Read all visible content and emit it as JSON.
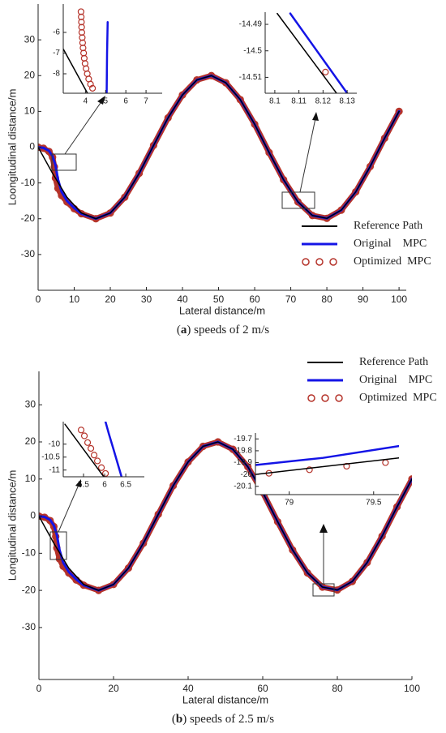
{
  "chart_data": [
    {
      "type": "line",
      "xlabel": "Lateral distance/m",
      "ylabel": "Loongitudinal distance/m",
      "xlim": [
        0,
        102
      ],
      "ylim": [
        -40,
        40
      ],
      "xticks": [
        0,
        10,
        20,
        30,
        40,
        50,
        60,
        70,
        80,
        90,
        100
      ],
      "yticks": [
        -30,
        -20,
        -10,
        0,
        10,
        20,
        30
      ],
      "legend": "lower right",
      "caption": [
        "(",
        "a",
        ") speeds of 2 m/s"
      ],
      "series": [
        {
          "name": "Reference Path",
          "color": "#000000",
          "linewidth": 1.5,
          "linestyle": "-",
          "x": [
            0,
            4,
            8,
            12,
            16,
            20,
            24,
            28,
            32,
            36,
            40,
            44,
            48,
            52,
            56,
            60,
            64,
            68,
            72,
            76,
            80,
            84,
            88,
            92,
            96,
            100
          ],
          "values": [
            0,
            -7.3,
            -14,
            -18.4,
            -20,
            -18.4,
            -14,
            -7.3,
            0.5,
            8.2,
            14.6,
            18.8,
            20,
            18,
            13.3,
            6.4,
            -1.5,
            -9.1,
            -15.3,
            -19.1,
            -19.9,
            -17.6,
            -12.5,
            -5.4,
            2.5,
            10
          ]
        },
        {
          "name": "Original    MPC",
          "color": "#1414e6",
          "linewidth": 3,
          "linestyle": "-",
          "x": [
            0,
            1.5,
            3,
            4,
            4.8,
            5.5,
            6.5,
            8,
            10,
            12,
            16,
            20,
            24,
            28,
            32,
            36,
            40,
            44,
            48,
            52,
            56,
            60,
            64,
            68,
            72,
            76,
            80,
            84,
            88,
            92,
            96,
            100
          ],
          "values": [
            0,
            -0.2,
            -1,
            -2.5,
            -5,
            -9,
            -12.5,
            -15,
            -17,
            -18.6,
            -20,
            -18.4,
            -14,
            -7.3,
            0.5,
            8.2,
            14.6,
            18.8,
            20,
            18,
            13.3,
            6.4,
            -1.5,
            -9.1,
            -15.3,
            -19.1,
            -19.9,
            -17.6,
            -12.5,
            -5.4,
            2.5,
            10
          ]
        },
        {
          "name": "Optimized  MPC",
          "color": "#b5332a",
          "linewidth": 7,
          "linestyle": "-",
          "marker": "o",
          "markersize": 4,
          "x": [
            0,
            1.5,
            3,
            4,
            4.5,
            4.8,
            5.5,
            6.5,
            8,
            10,
            12,
            16,
            20,
            24,
            28,
            32,
            36,
            40,
            44,
            48,
            52,
            56,
            60,
            64,
            68,
            72,
            76,
            80,
            84,
            88,
            92,
            96,
            100
          ],
          "values": [
            0,
            -0.3,
            -1.2,
            -2.8,
            -5.5,
            -8.6,
            -11.5,
            -13.5,
            -15.3,
            -17.2,
            -18.6,
            -20,
            -18.4,
            -14,
            -7.3,
            0.5,
            8.2,
            14.6,
            18.8,
            20,
            18,
            13.3,
            6.4,
            -1.5,
            -9.1,
            -15.3,
            -19.1,
            -19.9,
            -17.6,
            -12.5,
            -5.4,
            2.5,
            10
          ]
        }
      ]
    },
    {
      "type": "line",
      "xlim": [
        2.9,
        7.8
      ],
      "ylim": [
        -8.94,
        -4.63
      ],
      "xticks": [
        4,
        5,
        6,
        7
      ],
      "yticks": [
        -8,
        -7,
        -6
      ],
      "series": [
        {
          "color": "#000000",
          "linewidth": 1.5,
          "linestyle": "-",
          "x": [
            2.9,
            4.1
          ],
          "values": [
            -6.8,
            -8.94
          ]
        },
        {
          "color": "#1414e6",
          "linewidth": 2.5,
          "linestyle": "-",
          "x": [
            5.1,
            5.07,
            5.05
          ],
          "values": [
            -5.5,
            -7,
            -8.94
          ]
        },
        {
          "color": "#b5332a",
          "linestyle": "none",
          "marker": "o",
          "markersize": 3.5,
          "x": [
            3.78,
            3.79,
            3.8,
            3.81,
            3.82,
            3.84,
            3.86,
            3.88,
            3.91,
            3.94,
            3.98,
            4.03,
            4.09,
            4.16,
            4.25,
            4.35
          ],
          "values": [
            -5.0,
            -5.25,
            -5.5,
            -5.75,
            -6.0,
            -6.25,
            -6.5,
            -6.75,
            -7.0,
            -7.25,
            -7.5,
            -7.75,
            -8.0,
            -8.25,
            -8.5,
            -8.7
          ]
        }
      ]
    },
    {
      "type": "line",
      "xlim": [
        8.096,
        8.134
      ],
      "ylim": [
        -14.516,
        -14.4854
      ],
      "xticks": [
        8.1,
        8.11,
        8.12,
        8.13
      ],
      "yticks": [
        -14.51,
        -14.5,
        -14.49
      ],
      "series": [
        {
          "color": "#000000",
          "linewidth": 1.5,
          "linestyle": "-",
          "x": [
            8.101,
            8.1256
          ],
          "values": [
            -14.4859,
            -14.516
          ]
        },
        {
          "color": "#1414e6",
          "linewidth": 2.5,
          "linestyle": "-",
          "x": [
            8.1064,
            8.13
          ],
          "values": [
            -14.4859,
            -14.516
          ]
        },
        {
          "color": "#b5332a",
          "linestyle": "none",
          "marker": "o",
          "markersize": 3.5,
          "x": [
            8.121
          ],
          "values": [
            -14.508
          ]
        }
      ]
    },
    {
      "type": "line",
      "xlabel": "Lateral distance/m",
      "ylabel": "Longitudinal distance/m",
      "xlim": [
        0,
        100
      ],
      "ylim": [
        -44,
        39
      ],
      "xticks": [
        0,
        20,
        40,
        60,
        80,
        100
      ],
      "yticks": [
        -30,
        -20,
        -10,
        0,
        10,
        20,
        30
      ],
      "legend": "upper right",
      "caption": [
        "(",
        "b",
        ") speeds of 2.5 m/s"
      ],
      "series": [
        {
          "name": "Reference Path",
          "color": "#000000",
          "linewidth": 1.5,
          "linestyle": "-",
          "x": [
            0,
            4,
            8,
            12,
            16,
            20,
            24,
            28,
            32,
            36,
            40,
            44,
            48,
            52,
            56,
            60,
            64,
            68,
            72,
            76,
            80,
            84,
            88,
            92,
            96,
            100
          ],
          "values": [
            0,
            -7.3,
            -14,
            -18.4,
            -20,
            -18.4,
            -14,
            -7.3,
            0.5,
            8.2,
            14.6,
            18.8,
            20,
            18,
            13.3,
            6.4,
            -1.5,
            -9.1,
            -15.3,
            -19.1,
            -19.9,
            -17.6,
            -12.5,
            -5.4,
            2.5,
            10
          ]
        },
        {
          "name": "Original    MPC",
          "color": "#1414e6",
          "linewidth": 3,
          "linestyle": "-",
          "x": [
            0,
            1.5,
            3,
            4,
            4.8,
            5.5,
            6.5,
            8,
            10,
            12,
            16,
            20,
            24,
            28,
            32,
            36,
            40,
            44,
            48,
            52,
            56,
            60,
            64,
            68,
            72,
            76,
            80,
            84,
            88,
            92,
            96,
            100
          ],
          "values": [
            0,
            -0.2,
            -1,
            -2.5,
            -5,
            -9,
            -12.5,
            -15,
            -17,
            -18.6,
            -20,
            -18.4,
            -14,
            -7.3,
            0.5,
            8.2,
            14.6,
            18.8,
            20,
            18,
            13.3,
            6.4,
            -1.5,
            -9.1,
            -15.3,
            -19.1,
            -19.9,
            -17.6,
            -12.5,
            -5.4,
            2.5,
            10
          ]
        },
        {
          "name": "Optimized  MPC",
          "color": "#b5332a",
          "linewidth": 7,
          "linestyle": "-",
          "marker": "o",
          "markersize": 4,
          "x": [
            0,
            1.5,
            3,
            4,
            4.5,
            4.8,
            5.5,
            6.5,
            8,
            10,
            12,
            16,
            20,
            24,
            28,
            32,
            36,
            40,
            44,
            48,
            52,
            56,
            60,
            64,
            68,
            72,
            76,
            80,
            84,
            88,
            92,
            96,
            100
          ],
          "values": [
            0,
            -0.3,
            -1.2,
            -2.8,
            -5.5,
            -8.6,
            -11.5,
            -13.5,
            -15.3,
            -17.2,
            -18.6,
            -20,
            -18.4,
            -14,
            -7.3,
            0.5,
            8.2,
            14.6,
            18.8,
            20,
            18,
            13.3,
            6.4,
            -1.5,
            -9.1,
            -15.3,
            -19.1,
            -19.9,
            -17.6,
            -12.5,
            -5.4,
            2.5,
            10
          ]
        }
      ]
    },
    {
      "type": "line",
      "xlim": [
        5.02,
        6.94
      ],
      "ylim": [
        -11.26,
        -9.13
      ],
      "xticks": [
        5.5,
        6,
        6.5
      ],
      "yticks": [
        -11,
        -10.5,
        -10
      ],
      "series": [
        {
          "color": "#000000",
          "linewidth": 1.5,
          "linestyle": "-",
          "x": [
            5.06,
            5.98
          ],
          "values": [
            -9.23,
            -11.26
          ]
        },
        {
          "color": "#1414e6",
          "linewidth": 2.5,
          "linestyle": "-",
          "x": [
            6.02,
            6.1,
            6.21,
            6.4
          ],
          "values": [
            -9.13,
            -9.6,
            -10.2,
            -11.26
          ]
        },
        {
          "color": "#b5332a",
          "linestyle": "none",
          "marker": "o",
          "markersize": 3.5,
          "x": [
            5.443,
            5.52,
            5.597,
            5.674,
            5.751,
            5.828,
            5.924,
            6.02
          ],
          "values": [
            -9.453,
            -9.679,
            -9.938,
            -10.164,
            -10.422,
            -10.648,
            -10.907,
            -11.133
          ]
        }
      ]
    },
    {
      "type": "line",
      "xlim": [
        78.8,
        79.65
      ],
      "ylim": [
        -20.17,
        -19.65
      ],
      "xticks": [
        79,
        79.5
      ],
      "yticks": [
        -20.1,
        -20,
        -19.9,
        -19.8,
        -19.7
      ],
      "series": [
        {
          "color": "#000000",
          "linewidth": 1.5,
          "linestyle": "-",
          "x": [
            78.8,
            79.65
          ],
          "values": [
            -20.0,
            -19.86
          ]
        },
        {
          "color": "#1414e6",
          "linewidth": 2.5,
          "linestyle": "-",
          "x": [
            78.8,
            79.2,
            79.65
          ],
          "values": [
            -19.92,
            -19.86,
            -19.76
          ]
        },
        {
          "color": "#b5332a",
          "linestyle": "none",
          "marker": "o",
          "markersize": 3.5,
          "x": [
            78.88,
            79.12,
            79.34,
            79.57
          ],
          "values": [
            -19.99,
            -19.96,
            -19.93,
            -19.9
          ]
        }
      ]
    }
  ]
}
